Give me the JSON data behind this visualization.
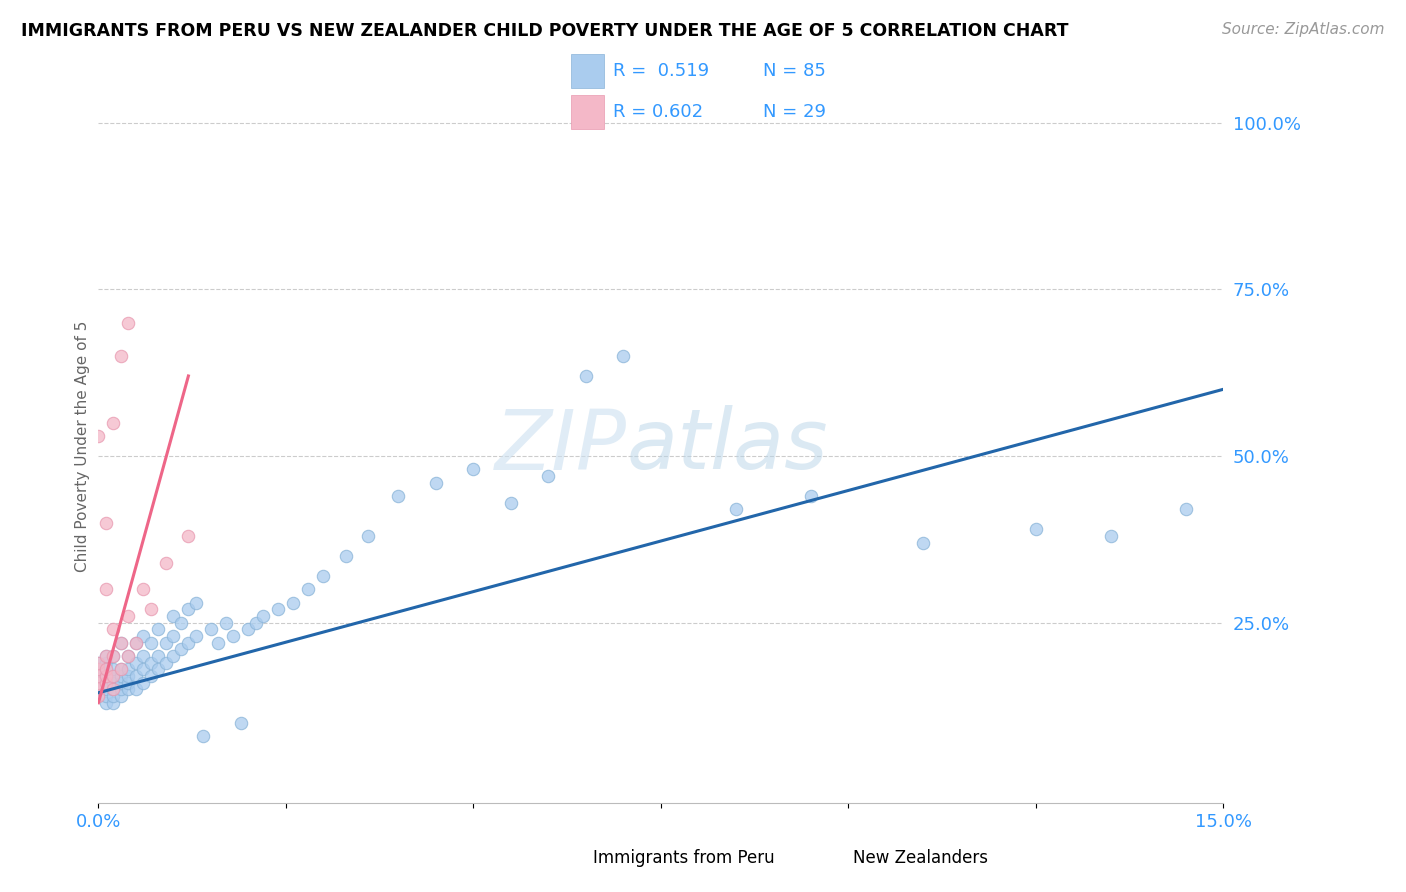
{
  "title": "IMMIGRANTS FROM PERU VS NEW ZEALANDER CHILD POVERTY UNDER THE AGE OF 5 CORRELATION CHART",
  "source": "Source: ZipAtlas.com",
  "ylabel": "Child Poverty Under the Age of 5",
  "xlim": [
    0.0,
    0.15
  ],
  "ylim": [
    -0.02,
    1.05
  ],
  "blue_color": "#aaccee",
  "pink_color": "#f4b8c8",
  "line_blue": "#2266aa",
  "line_pink": "#ee6688",
  "text_color": "#3399ff",
  "blue_scatter_x": [
    0.0,
    0.0,
    0.0,
    0.0,
    0.0,
    0.0,
    0.001,
    0.001,
    0.001,
    0.001,
    0.001,
    0.001,
    0.001,
    0.001,
    0.002,
    0.002,
    0.002,
    0.002,
    0.002,
    0.002,
    0.002,
    0.003,
    0.003,
    0.003,
    0.003,
    0.003,
    0.003,
    0.004,
    0.004,
    0.004,
    0.004,
    0.004,
    0.005,
    0.005,
    0.005,
    0.005,
    0.006,
    0.006,
    0.006,
    0.006,
    0.007,
    0.007,
    0.007,
    0.008,
    0.008,
    0.008,
    0.009,
    0.009,
    0.01,
    0.01,
    0.01,
    0.011,
    0.011,
    0.012,
    0.012,
    0.013,
    0.013,
    0.014,
    0.015,
    0.016,
    0.017,
    0.018,
    0.019,
    0.02,
    0.021,
    0.022,
    0.024,
    0.026,
    0.028,
    0.03,
    0.033,
    0.036,
    0.04,
    0.045,
    0.05,
    0.055,
    0.06,
    0.065,
    0.07,
    0.085,
    0.095,
    0.11,
    0.125,
    0.135,
    0.145
  ],
  "blue_scatter_y": [
    0.14,
    0.15,
    0.16,
    0.17,
    0.18,
    0.19,
    0.13,
    0.14,
    0.15,
    0.16,
    0.17,
    0.18,
    0.19,
    0.2,
    0.13,
    0.14,
    0.15,
    0.16,
    0.17,
    0.18,
    0.2,
    0.14,
    0.15,
    0.16,
    0.17,
    0.18,
    0.22,
    0.15,
    0.16,
    0.17,
    0.18,
    0.2,
    0.15,
    0.17,
    0.19,
    0.22,
    0.16,
    0.18,
    0.2,
    0.23,
    0.17,
    0.19,
    0.22,
    0.18,
    0.2,
    0.24,
    0.19,
    0.22,
    0.2,
    0.23,
    0.26,
    0.21,
    0.25,
    0.22,
    0.27,
    0.23,
    0.28,
    0.08,
    0.24,
    0.22,
    0.25,
    0.23,
    0.1,
    0.24,
    0.25,
    0.26,
    0.27,
    0.28,
    0.3,
    0.32,
    0.35,
    0.38,
    0.44,
    0.46,
    0.48,
    0.43,
    0.47,
    0.62,
    0.65,
    0.42,
    0.44,
    0.37,
    0.39,
    0.38,
    0.42
  ],
  "pink_scatter_x": [
    0.0,
    0.0,
    0.0,
    0.0,
    0.0,
    0.0,
    0.0,
    0.001,
    0.001,
    0.001,
    0.001,
    0.001,
    0.001,
    0.002,
    0.002,
    0.002,
    0.002,
    0.002,
    0.003,
    0.003,
    0.003,
    0.004,
    0.004,
    0.004,
    0.005,
    0.006,
    0.007,
    0.009,
    0.012
  ],
  "pink_scatter_y": [
    0.14,
    0.15,
    0.16,
    0.17,
    0.18,
    0.19,
    0.53,
    0.16,
    0.17,
    0.18,
    0.2,
    0.3,
    0.4,
    0.15,
    0.17,
    0.2,
    0.24,
    0.55,
    0.18,
    0.22,
    0.65,
    0.2,
    0.26,
    0.7,
    0.22,
    0.3,
    0.27,
    0.34,
    0.38
  ],
  "blue_line_x": [
    0.0,
    0.15
  ],
  "blue_line_y": [
    0.145,
    0.6
  ],
  "pink_line_x": [
    0.0,
    0.012
  ],
  "pink_line_y": [
    0.13,
    0.62
  ]
}
